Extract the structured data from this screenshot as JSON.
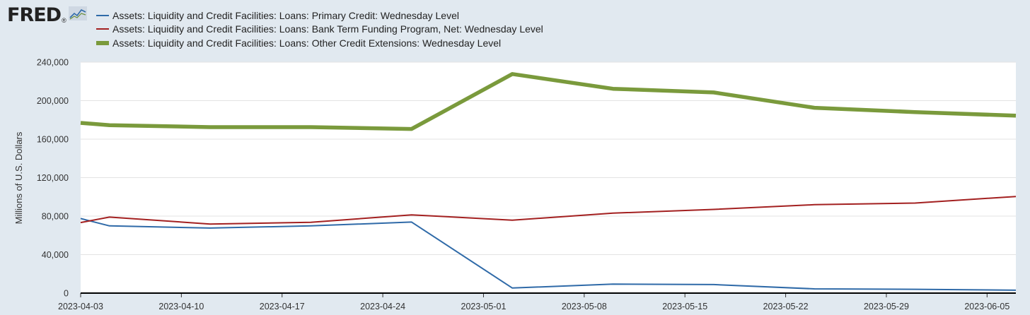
{
  "logo": {
    "text": "FRED",
    "mark": "®",
    "icon": "fred-trend-icon"
  },
  "chart_data": {
    "type": "line",
    "ylabel": "Millions of U.S. Dollars",
    "ylim": [
      0,
      240000
    ],
    "yticks": [
      0,
      40000,
      80000,
      120000,
      160000,
      200000,
      240000
    ],
    "ytick_labels": [
      "0",
      "40,000",
      "80,000",
      "120,000",
      "160,000",
      "200,000",
      "240,000"
    ],
    "xlim": [
      "2023-04-03",
      "2023-06-07"
    ],
    "xticks": [
      "2023-04-03",
      "2023-04-10",
      "2023-04-17",
      "2023-04-24",
      "2023-05-01",
      "2023-05-08",
      "2023-05-15",
      "2023-05-22",
      "2023-05-29",
      "2023-06-05"
    ],
    "grid": true,
    "legend_position": "top-left",
    "x": [
      "2023-04-05",
      "2023-04-12",
      "2023-04-19",
      "2023-04-26",
      "2023-05-03",
      "2023-05-10",
      "2023-05-17",
      "2023-05-24",
      "2023-05-31",
      "2023-06-07"
    ],
    "series": [
      {
        "name": "Assets: Liquidity and Credit Facilities: Loans: Primary Credit: Wednesday Level",
        "color": "#2f6aa8",
        "x": [
          "2023-04-03",
          "2023-04-05",
          "2023-04-12",
          "2023-04-19",
          "2023-04-26",
          "2023-05-03",
          "2023-05-10",
          "2023-05-17",
          "2023-05-24",
          "2023-05-31",
          "2023-06-07"
        ],
        "values": [
          77500,
          69900,
          67600,
          69900,
          73800,
          5300,
          9300,
          8900,
          4400,
          4000,
          3000
        ]
      },
      {
        "name": "Assets: Liquidity and Credit Facilities: Loans: Bank Term Funding Program, Net: Wednesday Level",
        "color": "#a32020",
        "x": [
          "2023-04-03",
          "2023-04-05",
          "2023-04-12",
          "2023-04-19",
          "2023-04-26",
          "2023-05-03",
          "2023-05-10",
          "2023-05-17",
          "2023-05-24",
          "2023-05-31",
          "2023-06-07"
        ],
        "values": [
          73300,
          79000,
          71800,
          73600,
          81300,
          75800,
          83100,
          87000,
          91900,
          93600,
          100400
        ]
      },
      {
        "name": "Assets: Liquidity and Credit Facilities: Loans: Other Credit Extensions: Wednesday Level",
        "color": "#7a9a3c",
        "x": [
          "2023-04-03",
          "2023-04-05",
          "2023-04-12",
          "2023-04-19",
          "2023-04-26",
          "2023-05-03",
          "2023-05-10",
          "2023-05-17",
          "2023-05-24",
          "2023-05-31",
          "2023-06-07"
        ],
        "values": [
          176900,
          174500,
          172500,
          172500,
          170600,
          227700,
          212300,
          208500,
          192600,
          188100,
          184400
        ]
      }
    ]
  }
}
